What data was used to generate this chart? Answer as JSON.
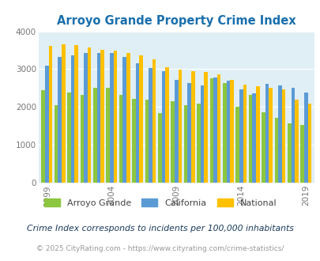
{
  "title": "Arroyo Grande Property Crime Index",
  "years": [
    1999,
    2000,
    2001,
    2002,
    2003,
    2004,
    2005,
    2006,
    2007,
    2008,
    2009,
    2010,
    2011,
    2012,
    2013,
    2014,
    2015,
    2016,
    2017,
    2018,
    2019
  ],
  "arroyo_grande": [
    2450,
    2050,
    2380,
    2330,
    2500,
    2500,
    2330,
    2220,
    2190,
    1840,
    2150,
    2040,
    2090,
    2750,
    2640,
    2010,
    2330,
    1850,
    1710,
    1570,
    1530
  ],
  "california": [
    3100,
    3320,
    3360,
    3430,
    3430,
    3430,
    3330,
    3150,
    3040,
    2950,
    2720,
    2640,
    2580,
    2780,
    2700,
    2470,
    2360,
    2610,
    2570,
    2510,
    2390
  ],
  "national": [
    3610,
    3660,
    3630,
    3570,
    3520,
    3490,
    3430,
    3360,
    3250,
    3060,
    2990,
    2950,
    2920,
    2870,
    2710,
    2600,
    2540,
    2500,
    2460,
    2200,
    2100
  ],
  "colors": {
    "arroyo_grande": "#8dc63f",
    "california": "#5b9bd5",
    "national": "#ffc000"
  },
  "bg_color": "#e0eff5",
  "ylim": [
    0,
    4000
  ],
  "ylabel_ticks": [
    0,
    1000,
    2000,
    3000,
    4000
  ],
  "xlabel_ticks": [
    1999,
    2004,
    2009,
    2014,
    2019
  ],
  "footnote1": "Crime Index corresponds to incidents per 100,000 inhabitants",
  "footnote2": "© 2025 CityRating.com - https://www.cityrating.com/crime-statistics/",
  "legend_labels": [
    "Arroyo Grande",
    "California",
    "National"
  ],
  "title_color": "#1a6fad",
  "tick_color": "#777777",
  "footnote1_color": "#1a3a5c",
  "footnote2_color": "#999999"
}
